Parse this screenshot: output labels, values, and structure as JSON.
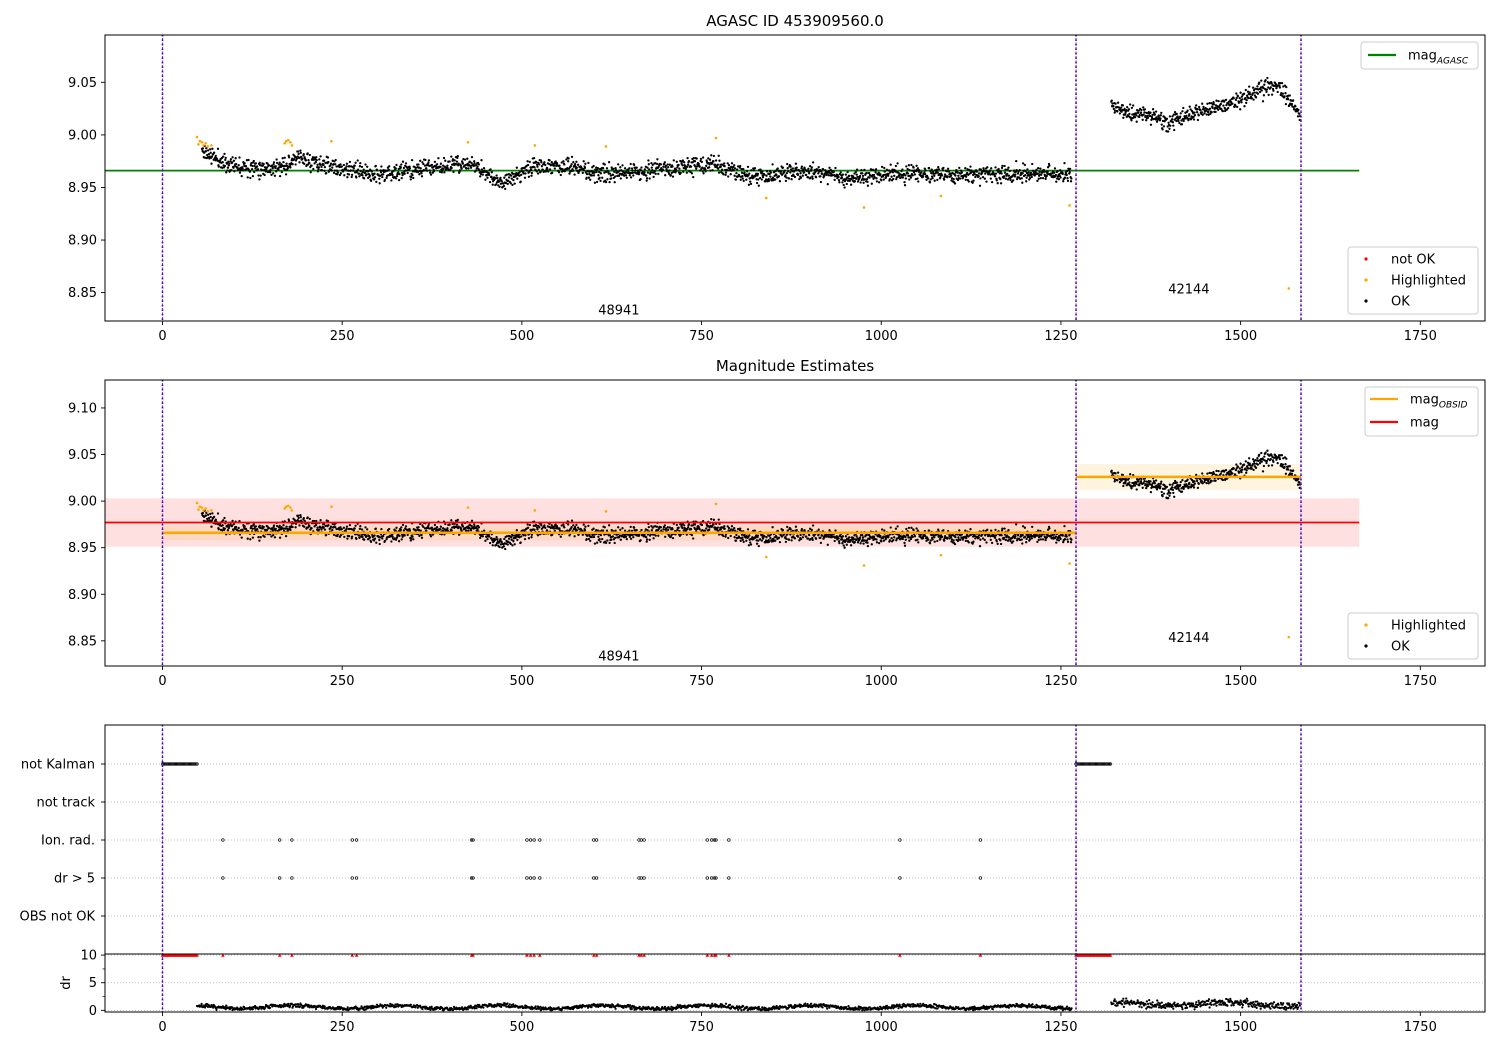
{
  "chart_data": [
    {
      "type": "scatter",
      "title": "AGASC ID 453909560.0",
      "xlim": [
        -80,
        1840
      ],
      "ylim": [
        8.823,
        9.095
      ],
      "xticks": [
        0,
        250,
        500,
        750,
        1000,
        1250,
        1500,
        1750
      ],
      "yticks": [
        8.85,
        8.9,
        8.95,
        9.0,
        9.05
      ],
      "ytick_labels": [
        "8.85",
        "8.90",
        "8.95",
        "9.00",
        "9.05"
      ],
      "obsid_boundaries": [
        0,
        1271,
        1584
      ],
      "annotations": [
        {
          "text": "48941",
          "x": 635,
          "y": 8.833
        },
        {
          "text": "42144",
          "x": 1428,
          "y": 8.853
        }
      ],
      "lines": [
        {
          "name": "mag_AGASC",
          "label_main": "mag",
          "label_sub": "AGASC",
          "color": "#008000",
          "x": [
            -80,
            1665
          ],
          "y": 8.966
        }
      ],
      "series": [
        {
          "name": "not OK",
          "color": "#ff0000",
          "points": []
        },
        {
          "name": "Highlighted",
          "color": "#ffa500",
          "points": [
            [
              48,
              8.998
            ],
            [
              50,
              8.991
            ],
            [
              52,
              8.994
            ],
            [
              55,
              8.993
            ],
            [
              57,
              8.99
            ],
            [
              60,
              8.992
            ],
            [
              63,
              8.989
            ],
            [
              68,
              8.99
            ],
            [
              170,
              8.992
            ],
            [
              172,
              8.994
            ],
            [
              175,
              8.995
            ],
            [
              178,
              8.993
            ],
            [
              180,
              8.99
            ],
            [
              235,
              8.994
            ],
            [
              425,
              8.993
            ],
            [
              518,
              8.99
            ],
            [
              617,
              8.989
            ],
            [
              770,
              8.997
            ],
            [
              840,
              8.94
            ],
            [
              976,
              8.931
            ],
            [
              1083,
              8.942
            ],
            [
              1262,
              8.933
            ],
            [
              1567,
              8.854
            ]
          ]
        },
        {
          "name": "OK",
          "color": "#000000",
          "segments": [
            {
              "x0": 55,
              "x1": 1265,
              "base": 8.966,
              "amp": 0.008,
              "knots": [
                [
                  55,
                  8.985
                ],
                [
                  90,
                  8.972
                ],
                [
                  160,
                  8.968
                ],
                [
                  190,
                  8.978
                ],
                [
                  230,
                  8.97
                ],
                [
                  300,
                  8.962
                ],
                [
                  380,
                  8.97
                ],
                [
                  430,
                  8.972
                ],
                [
                  470,
                  8.955
                ],
                [
                  520,
                  8.97
                ],
                [
                  560,
                  8.97
                ],
                [
                  620,
                  8.962
                ],
                [
                  700,
                  8.968
                ],
                [
                  760,
                  8.972
                ],
                [
                  820,
                  8.96
                ],
                [
                  850,
                  8.962
                ],
                [
                  900,
                  8.966
                ],
                [
                  960,
                  8.958
                ],
                [
                  1000,
                  8.964
                ],
                [
                  1100,
                  8.962
                ],
                [
                  1200,
                  8.963
                ],
                [
                  1265,
                  8.962
                ]
              ]
            },
            {
              "x0": 1320,
              "x1": 1583,
              "base": 9.025,
              "amp": 0.008,
              "knots": [
                [
                  1320,
                  9.03
                ],
                [
                  1340,
                  9.02
                ],
                [
                  1380,
                  9.018
                ],
                [
                  1400,
                  9.012
                ],
                [
                  1440,
                  9.022
                ],
                [
                  1480,
                  9.028
                ],
                [
                  1520,
                  9.04
                ],
                [
                  1550,
                  9.048
                ],
                [
                  1570,
                  9.032
                ],
                [
                  1583,
                  9.018
                ]
              ]
            }
          ]
        }
      ],
      "legends": [
        {
          "position": "top-right",
          "entries": [
            {
              "marker": "line",
              "label_main": "mag",
              "label_sub": "AGASC",
              "color": "#008000"
            }
          ]
        },
        {
          "position": "lower-right",
          "entries": [
            {
              "marker": "dot",
              "label": "not OK",
              "color": "#ff0000"
            },
            {
              "marker": "dot",
              "label": "Highlighted",
              "color": "#ffa500"
            },
            {
              "marker": "dot",
              "label": "OK",
              "color": "#000000"
            }
          ]
        }
      ]
    },
    {
      "type": "scatter",
      "title": "Magnitude Estimates",
      "xlim": [
        -80,
        1840
      ],
      "ylim": [
        8.823,
        9.13
      ],
      "xticks": [
        0,
        250,
        500,
        750,
        1000,
        1250,
        1500,
        1750
      ],
      "yticks": [
        8.85,
        8.9,
        8.95,
        9.0,
        9.05,
        9.1
      ],
      "ytick_labels": [
        "8.85",
        "8.90",
        "8.95",
        "9.00",
        "9.05",
        "9.10"
      ],
      "obsid_boundaries": [
        0,
        1271,
        1584
      ],
      "annotations": [
        {
          "text": "48941",
          "x": 635,
          "y": 8.833
        },
        {
          "text": "42144",
          "x": 1428,
          "y": 8.853
        }
      ],
      "bands": [
        {
          "name": "mag band",
          "color": "#ff0000",
          "opacity": 0.12,
          "x": [
            -80,
            1665
          ],
          "y": [
            8.951,
            9.003
          ]
        },
        {
          "name": "mag_OBSID band 1",
          "color": "#ffa500",
          "opacity": 0.12,
          "x": [
            0,
            1271
          ],
          "y": [
            8.958,
            8.974
          ]
        },
        {
          "name": "mag_OBSID band 2",
          "color": "#ffa500",
          "opacity": 0.12,
          "x": [
            1271,
            1584
          ],
          "y": [
            9.012,
            9.04
          ]
        }
      ],
      "lines": [
        {
          "name": "mag_OBSID 1",
          "color": "#ffa500",
          "width": 2.5,
          "x": [
            0,
            1271
          ],
          "y": 8.966
        },
        {
          "name": "mag_OBSID 2",
          "color": "#ffa500",
          "width": 2.5,
          "x": [
            1271,
            1584
          ],
          "y": 9.026
        },
        {
          "name": "mag",
          "color": "#ff0000",
          "width": 1.8,
          "x": [
            -80,
            1665
          ],
          "y": 8.977
        }
      ],
      "series": [
        {
          "name": "Highlighted",
          "color": "#ffa500",
          "points": [
            [
              48,
              8.998
            ],
            [
              50,
              8.991
            ],
            [
              52,
              8.994
            ],
            [
              55,
              8.993
            ],
            [
              57,
              8.99
            ],
            [
              60,
              8.992
            ],
            [
              63,
              8.989
            ],
            [
              68,
              8.99
            ],
            [
              170,
              8.992
            ],
            [
              172,
              8.994
            ],
            [
              175,
              8.995
            ],
            [
              178,
              8.993
            ],
            [
              180,
              8.99
            ],
            [
              235,
              8.994
            ],
            [
              425,
              8.993
            ],
            [
              518,
              8.99
            ],
            [
              617,
              8.989
            ],
            [
              770,
              8.997
            ],
            [
              840,
              8.94
            ],
            [
              976,
              8.931
            ],
            [
              1083,
              8.942
            ],
            [
              1262,
              8.933
            ],
            [
              1567,
              8.854
            ]
          ]
        },
        {
          "name": "OK",
          "color": "#000000",
          "segments": [
            {
              "x0": 55,
              "x1": 1265,
              "base": 8.966,
              "amp": 0.008,
              "knots": [
                [
                  55,
                  8.985
                ],
                [
                  90,
                  8.972
                ],
                [
                  160,
                  8.968
                ],
                [
                  190,
                  8.978
                ],
                [
                  230,
                  8.97
                ],
                [
                  300,
                  8.962
                ],
                [
                  380,
                  8.97
                ],
                [
                  430,
                  8.972
                ],
                [
                  470,
                  8.955
                ],
                [
                  520,
                  8.97
                ],
                [
                  560,
                  8.97
                ],
                [
                  620,
                  8.962
                ],
                [
                  700,
                  8.968
                ],
                [
                  760,
                  8.972
                ],
                [
                  820,
                  8.96
                ],
                [
                  850,
                  8.962
                ],
                [
                  900,
                  8.966
                ],
                [
                  960,
                  8.958
                ],
                [
                  1000,
                  8.964
                ],
                [
                  1100,
                  8.962
                ],
                [
                  1200,
                  8.963
                ],
                [
                  1265,
                  8.962
                ]
              ]
            },
            {
              "x0": 1320,
              "x1": 1583,
              "base": 9.025,
              "amp": 0.008,
              "knots": [
                [
                  1320,
                  9.03
                ],
                [
                  1340,
                  9.02
                ],
                [
                  1380,
                  9.018
                ],
                [
                  1400,
                  9.012
                ],
                [
                  1440,
                  9.022
                ],
                [
                  1480,
                  9.028
                ],
                [
                  1520,
                  9.04
                ],
                [
                  1550,
                  9.048
                ],
                [
                  1570,
                  9.032
                ],
                [
                  1583,
                  9.018
                ]
              ]
            }
          ]
        }
      ],
      "legends": [
        {
          "position": "top-right",
          "entries": [
            {
              "marker": "line",
              "label_main": "mag",
              "label_sub": "OBSID",
              "color": "#ffa500"
            },
            {
              "marker": "line",
              "label": "mag",
              "color": "#ff0000"
            }
          ]
        },
        {
          "position": "lower-right",
          "entries": [
            {
              "marker": "dot",
              "label": "Highlighted",
              "color": "#ffa500"
            },
            {
              "marker": "dot",
              "label": "OK",
              "color": "#000000"
            }
          ]
        }
      ]
    },
    {
      "type": "scatter",
      "title": "",
      "xlim": [
        -80,
        1840
      ],
      "categories": [
        "not Kalman",
        "not track",
        "Ion. rad.",
        "dr > 5",
        "OBS not OK"
      ],
      "obsid_boundaries": [
        0,
        1271,
        1584
      ],
      "flags": {
        "not Kalman": {
          "ranges": [
            [
              0,
              48
            ],
            [
              1271,
              1320
            ]
          ]
        },
        "not track": {
          "ranges": []
        },
        "Ion. rad.": {
          "points": [
            84,
            163,
            180,
            264,
            270,
            430,
            432,
            507,
            512,
            517,
            525,
            600,
            604,
            663,
            666,
            670,
            758,
            764,
            768,
            770,
            788,
            1026,
            1138
          ]
        },
        "dr > 5": {
          "points": [
            84,
            163,
            180,
            264,
            270,
            430,
            432,
            507,
            512,
            517,
            525,
            600,
            604,
            663,
            666,
            670,
            758,
            764,
            768,
            770,
            788,
            1026,
            1138
          ]
        },
        "OBS not OK": {
          "points": []
        }
      }
    },
    {
      "type": "scatter",
      "title": "",
      "xlim": [
        -80,
        1840
      ],
      "ylim": [
        -0.3,
        10.2
      ],
      "yticks": [
        0,
        5,
        10
      ],
      "ytick_labels": [
        "0",
        "5",
        "10"
      ],
      "xticks": [
        0,
        250,
        500,
        750,
        1000,
        1250,
        1500,
        1750
      ],
      "ylabel": "dr",
      "obsid_boundaries": [
        0,
        1271,
        1584
      ],
      "clipped_marker_color": "#ff0000",
      "clipped_ranges": [
        [
          0,
          48
        ],
        [
          1271,
          1320
        ]
      ],
      "clipped_points": [
        84,
        163,
        180,
        264,
        270,
        430,
        432,
        507,
        512,
        517,
        525,
        600,
        604,
        663,
        666,
        670,
        758,
        764,
        768,
        770,
        788,
        1026,
        1138
      ],
      "series": [
        {
          "name": "dr",
          "color": "#000000",
          "segments": [
            {
              "x0": 48,
              "x1": 1265,
              "base": 0.6,
              "amp": 0.35
            },
            {
              "x0": 1320,
              "x1": 1583,
              "base": 1.1,
              "amp": 0.7
            }
          ]
        }
      ]
    }
  ]
}
